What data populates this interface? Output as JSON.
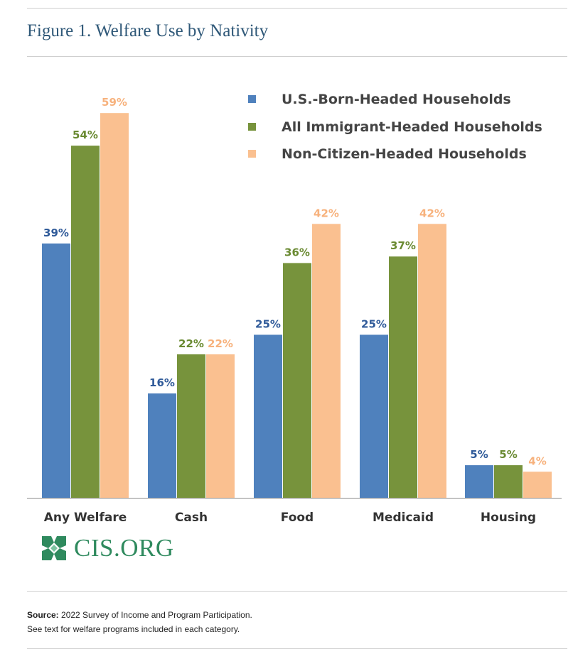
{
  "title": "Figure 1. Welfare Use by Nativity",
  "chart_data": {
    "type": "bar",
    "title": "Figure 1. Welfare Use by Nativity",
    "categories": [
      "Any Welfare",
      "Cash",
      "Food",
      "Medicaid",
      "Housing"
    ],
    "series": [
      {
        "name": "U.S.-Born-Headed Households",
        "values": [
          39,
          16,
          25,
          25,
          5
        ],
        "color": "#4f81bd",
        "label_color": "#2f5a99"
      },
      {
        "name": "All Immigrant-Headed Households",
        "values": [
          54,
          22,
          36,
          37,
          5
        ],
        "color": "#77933c",
        "label_color": "#6a8a32"
      },
      {
        "name": "Non-Citizen-Headed Households",
        "values": [
          59,
          22,
          42,
          42,
          4
        ],
        "color": "#fac090",
        "label_color": "#f7b27d"
      }
    ],
    "value_suffix": "%",
    "ylim": [
      0,
      60
    ],
    "grid": false,
    "legend_position": "top-right"
  },
  "logo": {
    "text": "CIS.ORG"
  },
  "source": {
    "label": "Source:",
    "text": " 2022 Survey of Income and Program Participation.",
    "note": "See text for welfare programs included in each category."
  }
}
